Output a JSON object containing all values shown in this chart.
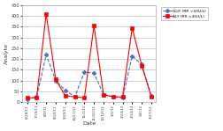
{
  "dates": [
    "6/28/11",
    "7/19/11",
    "8/9/11",
    "8/30/11",
    "9/20/11",
    "10/11/11",
    "11/1/11",
    "11/22/11",
    "12/13/11",
    "1/3/12",
    "1/24/12",
    "2/14/12",
    "3/6/12",
    "3/27/12"
  ],
  "ggt": [
    15,
    25,
    220,
    100,
    55,
    25,
    140,
    135,
    35,
    25,
    20,
    215,
    175,
    30
  ],
  "alt": [
    20,
    20,
    410,
    105,
    30,
    25,
    20,
    355,
    35,
    25,
    25,
    345,
    170,
    25
  ],
  "ggt_color": "#4472C4",
  "alt_color": "#FF0000",
  "xlabel": "Date",
  "ylabel": "Analyte",
  "ylim": [
    0,
    450
  ],
  "yticks": [
    0,
    50,
    100,
    150,
    200,
    250,
    300,
    350,
    400,
    450
  ],
  "legend_ggt": "GGT (RR <50U/L)",
  "legend_alt": "ALT (RR <45U/L)",
  "bg_color": "#FFFFFF",
  "grid_color": "#C0C0C0"
}
